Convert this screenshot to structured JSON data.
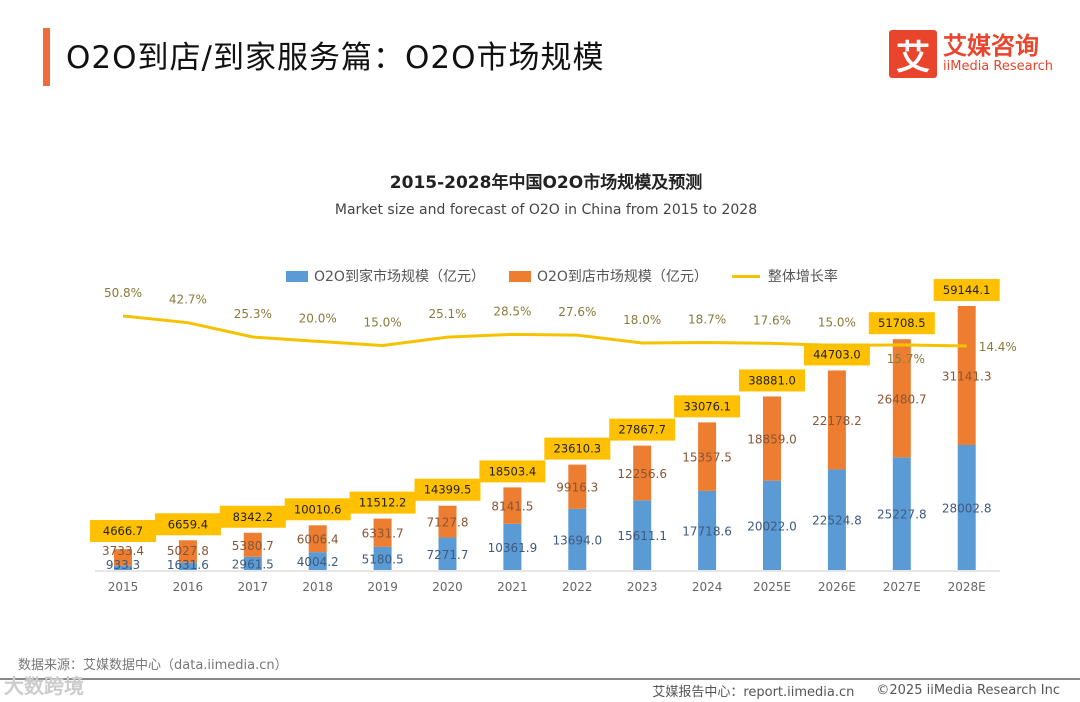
{
  "header": {
    "title": "O2O到店/到家服务篇：O2O市场规模"
  },
  "logo": {
    "mark": "艾",
    "name_cn": "艾媒咨询",
    "name_en": "iiMedia Research"
  },
  "chart_data": {
    "type": "bar",
    "stacked": true,
    "title": "2015-2028年中国O2O市场规模及预测",
    "subtitle": "Market size and forecast of O2O in China from 2015 to 2028",
    "categories": [
      "2015",
      "2016",
      "2017",
      "2018",
      "2019",
      "2020",
      "2021",
      "2022",
      "2023",
      "2024",
      "2025E",
      "2026E",
      "2027E",
      "2028E"
    ],
    "series": [
      {
        "name": "O2O到家市场规模（亿元）",
        "type": "bar",
        "color": "#5B9BD5",
        "values": [
          933.3,
          1631.6,
          2961.5,
          4004.2,
          5180.5,
          7271.7,
          10361.9,
          13694.0,
          15611.1,
          17718.6,
          20022.0,
          22524.8,
          25227.8,
          28002.8
        ]
      },
      {
        "name": "O2O到店市场规模（亿元）",
        "type": "bar",
        "color": "#ED7D31",
        "values": [
          3733.4,
          5027.8,
          5380.7,
          6006.4,
          6331.7,
          7127.8,
          8141.5,
          9916.3,
          12256.6,
          15357.5,
          18859.0,
          22178.2,
          26480.7,
          31141.3
        ]
      },
      {
        "name": "整体增长率",
        "type": "line",
        "color": "#F5C200",
        "unit": "%",
        "values": [
          50.8,
          42.7,
          25.3,
          20.0,
          15.0,
          25.1,
          28.5,
          27.6,
          18.0,
          18.7,
          17.6,
          15.0,
          15.7,
          14.4
        ]
      }
    ],
    "totals": [
      4666.7,
      6659.4,
      8342.2,
      10010.6,
      11512.2,
      14399.5,
      18503.4,
      23610.3,
      27867.7,
      33076.1,
      38881.0,
      44703.0,
      51708.5,
      59144.1
    ],
    "total_label_color": "#FFC000",
    "legend_position": "top",
    "grid": false
  },
  "footer": {
    "source": "数据来源：艾媒数据中心（data.iimedia.cn）",
    "report_center": "艾媒报告中心：report.iimedia.cn",
    "copyright": "©2025  iiMedia Research  Inc",
    "watermark": "大数跨境"
  }
}
